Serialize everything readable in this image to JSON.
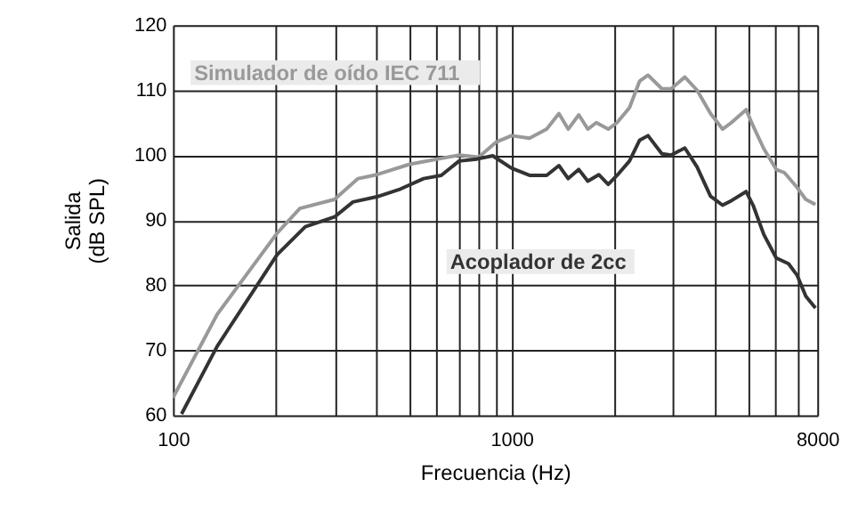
{
  "chart_data": {
    "type": "line",
    "xlabel": "Frecuencia (Hz)",
    "ylabel": "Salida\n(dB SPL)",
    "log": "x",
    "grid": true,
    "marker": "none",
    "line_style": "solid",
    "xlim": [
      100,
      8000
    ],
    "ylim": [
      60,
      120
    ],
    "xticks": [
      100,
      {
        "value": 200,
        "label": null
      },
      {
        "value": 300,
        "label": null
      },
      {
        "value": 400,
        "label": null
      },
      {
        "value": 500,
        "label": null
      },
      {
        "value": 600,
        "label": null
      },
      {
        "value": 700,
        "label": null
      },
      {
        "value": 800,
        "label": null
      },
      {
        "value": 900,
        "label": null
      },
      1000,
      {
        "value": 2000,
        "label": null
      },
      {
        "value": 3000,
        "label": null
      },
      {
        "value": 4000,
        "label": null
      },
      {
        "value": 5000,
        "label": null
      },
      {
        "value": 6000,
        "label": null
      },
      {
        "value": 7000,
        "label": null
      },
      8000
    ],
    "yticks": [
      60,
      70,
      80,
      90,
      100,
      110,
      120
    ],
    "series": [
      {
        "name": "Simulador de oído IEC 711",
        "color": "#999999",
        "x": [
          100,
          135,
          203,
          237,
          300,
          352,
          400,
          500,
          700,
          800,
          900,
          1000,
          1130,
          1270,
          1380,
          1470,
          1580,
          1680,
          1780,
          1930,
          2050,
          2230,
          2390,
          2530,
          2780,
          2960,
          3250,
          3530,
          3870,
          4200,
          4460,
          4930,
          5170,
          5560,
          6050,
          6400,
          6980,
          7400,
          7900
        ],
        "values": [
          62.7,
          75.5,
          88,
          91.8,
          93.2,
          96.4,
          97,
          98.6,
          100,
          99.7,
          102,
          103,
          102.6,
          104,
          106.4,
          104,
          106.2,
          104,
          105,
          104,
          105,
          107.3,
          111.4,
          112.3,
          110.2,
          110.2,
          112,
          110,
          106.4,
          104,
          105,
          107,
          104.5,
          101,
          97.8,
          97.3,
          95,
          93.2,
          92.4
        ]
      },
      {
        "name": "Acoplador de 2cc",
        "color": "#333333",
        "x": [
          106,
          135,
          203,
          246,
          300,
          340,
          400,
          470,
          550,
          620,
          700,
          790,
          880,
          1000,
          1130,
          1270,
          1380,
          1470,
          1580,
          1680,
          1810,
          1930,
          2050,
          2230,
          2390,
          2530,
          2780,
          2960,
          3250,
          3530,
          3870,
          4200,
          4460,
          4930,
          5170,
          5560,
          6050,
          6580,
          6980,
          7400,
          7900
        ],
        "values": [
          60.2,
          70.6,
          84.7,
          89,
          90.5,
          92.8,
          93.6,
          94.8,
          96.4,
          96.9,
          99.1,
          99.4,
          99.9,
          98,
          96.9,
          96.9,
          98.4,
          96.4,
          97.8,
          96,
          97,
          95.5,
          96.9,
          99.1,
          102.3,
          103,
          100.2,
          100,
          101.1,
          98.2,
          93.7,
          92.3,
          93,
          94.4,
          92.3,
          87.8,
          84.2,
          83.3,
          81.5,
          78.3,
          76.5
        ]
      }
    ]
  }
}
